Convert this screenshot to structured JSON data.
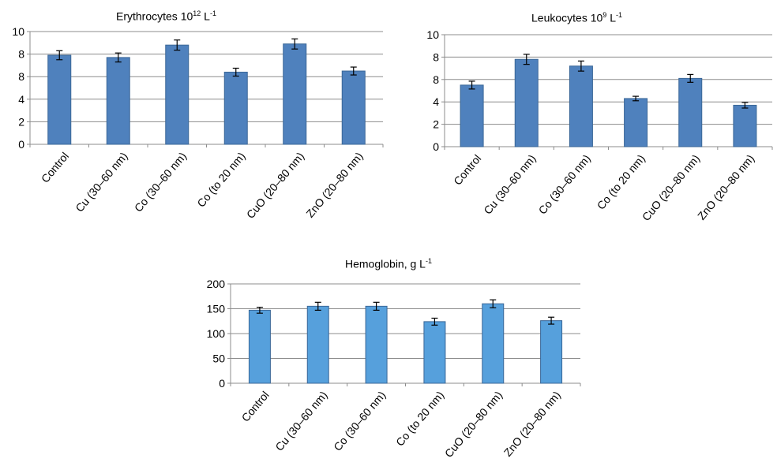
{
  "chart_data": [
    {
      "type": "bar",
      "title": "Erythrocytes 10",
      "title_sup1": "12",
      "title_mid": " L",
      "title_sup2": "-1",
      "categories": [
        "Control",
        "Cu (30–60 nm)",
        "Co (30–60 nm)",
        "Co (to 20 nm)",
        "CuO (20–80 nm)",
        "ZnO (20–80 nm)"
      ],
      "yticks": [
        "0",
        "2",
        "4",
        "8",
        "8",
        "10"
      ],
      "ylim": [
        0,
        10
      ],
      "series": [
        {
          "values": [
            7.9,
            7.7,
            8.8,
            6.4,
            8.9,
            6.5
          ],
          "errors": [
            0.4,
            0.4,
            0.45,
            0.35,
            0.45,
            0.35
          ]
        }
      ],
      "color": "#4f81bd",
      "grid": true
    },
    {
      "type": "bar",
      "title": "Leukocytes 10",
      "title_sup1": "9",
      "title_mid": " L",
      "title_sup2": "-1",
      "categories": [
        "Control",
        "Cu (30–60 nm)",
        "Co (30–60 nm)",
        "Co (to 20 nm)",
        "CuO (20–80 nm)",
        "ZnO (20–80 nm)"
      ],
      "yticks": [
        "0",
        "2",
        "4",
        "8",
        "8",
        "10"
      ],
      "ylim": [
        0,
        10
      ],
      "series": [
        {
          "values": [
            5.5,
            7.8,
            7.2,
            4.3,
            6.1,
            3.7
          ],
          "errors": [
            0.35,
            0.45,
            0.45,
            0.2,
            0.35,
            0.25
          ]
        }
      ],
      "color": "#4f81bd",
      "grid": true
    },
    {
      "type": "bar",
      "title": "Hemoglobin, g L",
      "title_sup1": "",
      "title_mid": "",
      "title_sup2": "-1",
      "categories": [
        "Control",
        "Cu (30–60 nm)",
        "Co (30–60 nm)",
        "Co (to 20 nm)",
        "CuO (20–80 nm)",
        "ZnO (20–80 nm)"
      ],
      "yticks": [
        "0",
        "50",
        "100",
        "150",
        "200"
      ],
      "ylim": [
        0,
        200
      ],
      "series": [
        {
          "values": [
            147,
            155,
            155,
            124,
            160,
            126
          ],
          "errors": [
            6,
            8,
            8,
            7,
            8,
            7
          ]
        }
      ],
      "color": "#56a0dc",
      "grid": true
    }
  ]
}
